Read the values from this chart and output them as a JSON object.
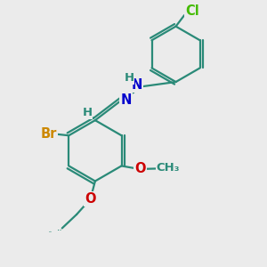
{
  "background_color": "#ebebeb",
  "bond_color": "#2a8a78",
  "bond_width": 1.6,
  "atom_colors": {
    "Br": "#cc8800",
    "N": "#0000cc",
    "O": "#cc0000",
    "Cl": "#44bb00",
    "C": "#2a8a78",
    "H": "#2a8a78"
  },
  "font_size": 10.5,
  "figsize": [
    3.0,
    3.0
  ],
  "dpi": 100,
  "xlim": [
    0,
    10
  ],
  "ylim": [
    0,
    10
  ]
}
